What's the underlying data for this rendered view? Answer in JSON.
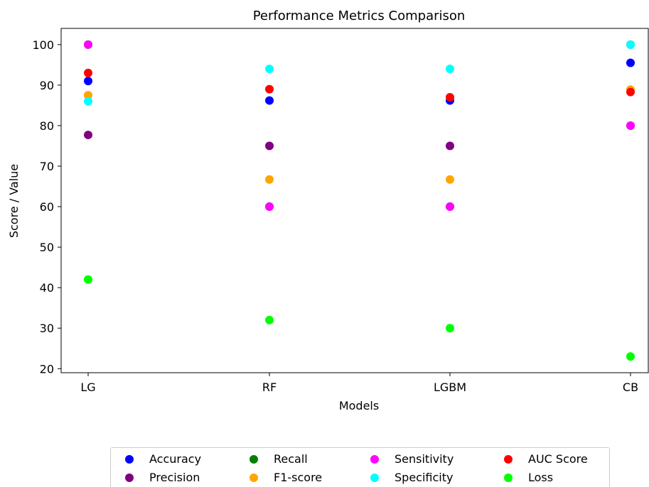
{
  "chart_data": {
    "type": "scatter",
    "title": "Performance Metrics Comparison",
    "xlabel": "Models",
    "ylabel": "Score / Value",
    "categories": [
      "LG",
      "RF",
      "LGBM",
      "CB"
    ],
    "ylim": [
      19,
      104
    ],
    "yticks": [
      20,
      30,
      40,
      50,
      60,
      70,
      80,
      90,
      100
    ],
    "grid": false,
    "legend_position": "bottom-center",
    "series": [
      {
        "name": "Accuracy",
        "color": "#0000ff",
        "values": [
          91,
          86.2,
          86.2,
          95.5
        ]
      },
      {
        "name": "Precision",
        "color": "#800080",
        "values": [
          77.7,
          75,
          75,
          80
        ]
      },
      {
        "name": "Recall",
        "color": "#008000",
        "values": [
          100,
          60,
          60,
          100
        ]
      },
      {
        "name": "F1-score",
        "color": "#ffa500",
        "values": [
          87.5,
          66.7,
          66.7,
          88.9
        ]
      },
      {
        "name": "Sensitivity",
        "color": "#ff00ff",
        "values": [
          100,
          60,
          60,
          80
        ]
      },
      {
        "name": "Specificity",
        "color": "#00ffff",
        "values": [
          86,
          94,
          94,
          100
        ]
      },
      {
        "name": "AUC Score",
        "color": "#ff0000",
        "values": [
          93,
          89,
          87,
          88.3
        ]
      },
      {
        "name": "Loss",
        "color": "#00ff00",
        "values": [
          42,
          32,
          30,
          23
        ]
      }
    ]
  }
}
